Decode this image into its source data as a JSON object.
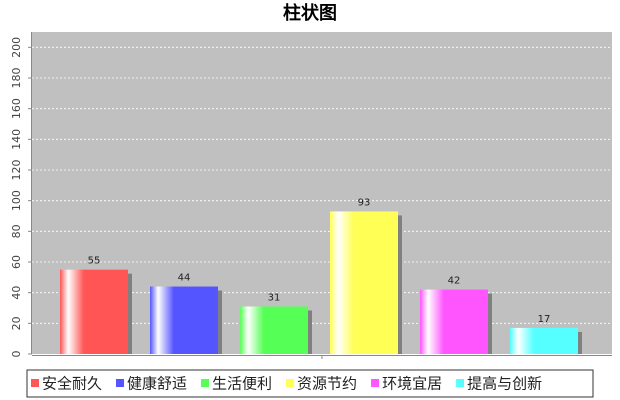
{
  "chart_data": {
    "type": "bar",
    "title": "柱状图",
    "categories": [
      null
    ],
    "series": [
      {
        "name": "安全耐久",
        "color": "#ff5555",
        "values": [
          55
        ]
      },
      {
        "name": "健康舒适",
        "color": "#5555ff",
        "values": [
          44
        ]
      },
      {
        "name": "生活便利",
        "color": "#55ff55",
        "values": [
          31
        ]
      },
      {
        "name": "资源节约",
        "color": "#ffff55",
        "values": [
          93
        ]
      },
      {
        "name": "环境宜居",
        "color": "#ff55ff",
        "values": [
          42
        ]
      },
      {
        "name": "提高与创新",
        "color": "#55ffff",
        "values": [
          17
        ]
      }
    ],
    "ylim": [
      0,
      210
    ],
    "yticks": [
      0,
      20,
      40,
      60,
      80,
      100,
      120,
      140,
      160,
      180,
      200
    ],
    "grid": true,
    "legend": "bottom"
  }
}
